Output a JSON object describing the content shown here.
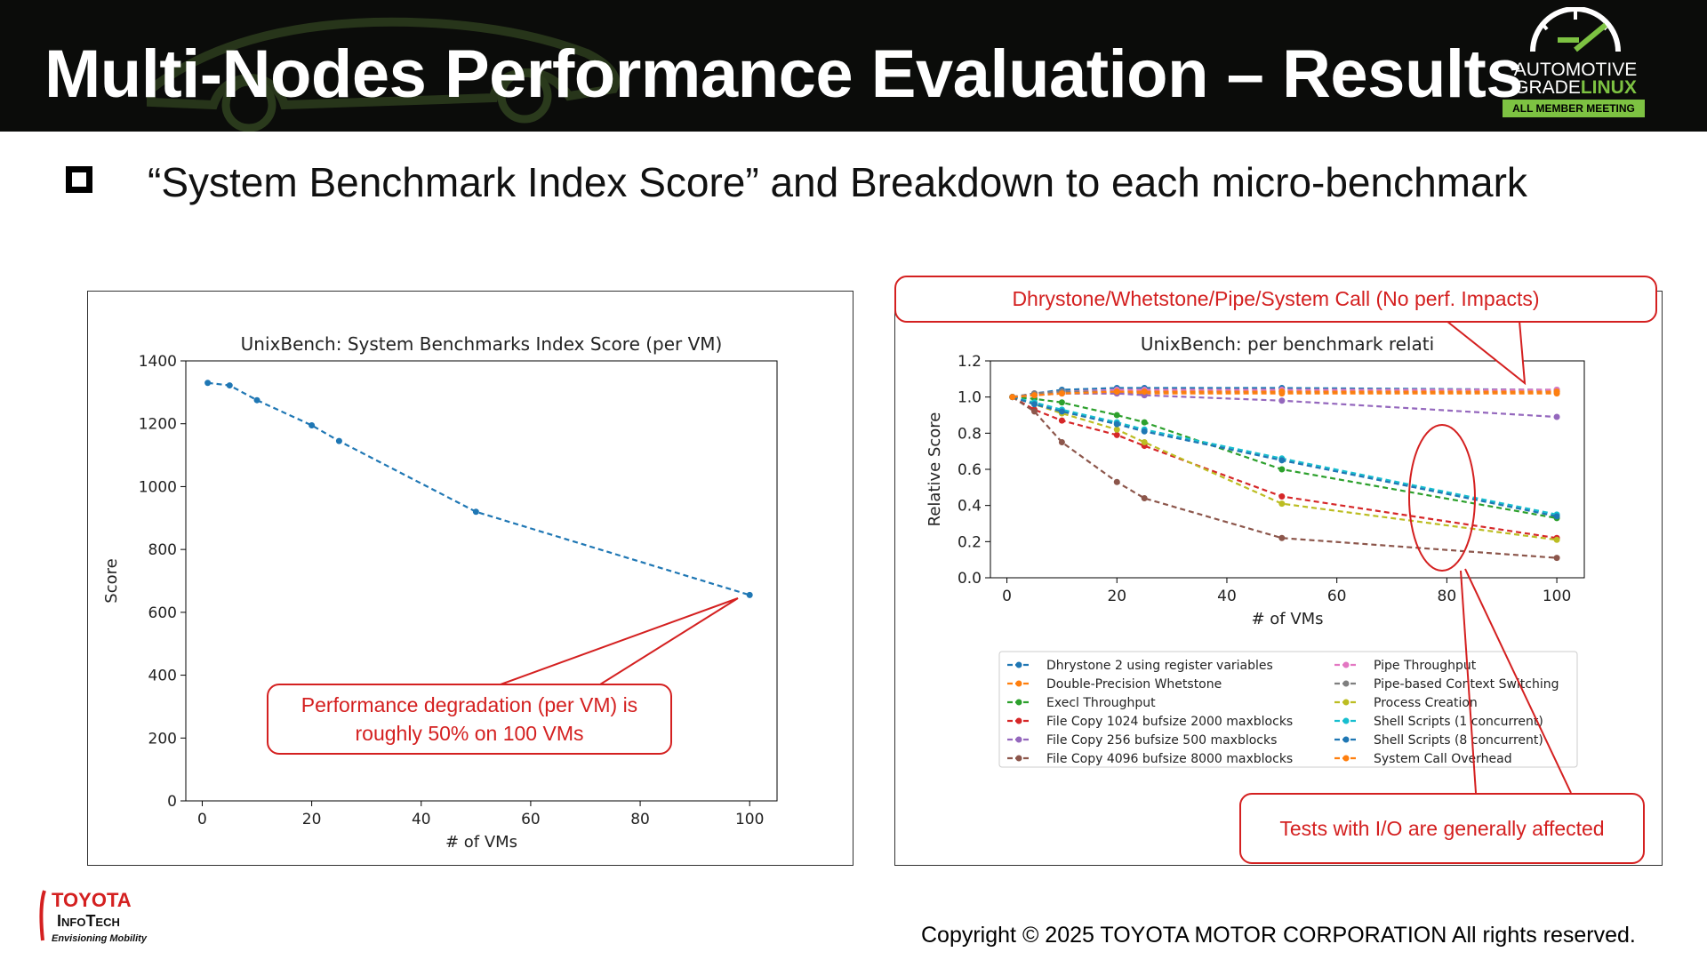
{
  "slide": {
    "title": "Multi-Nodes Performance Evaluation – Results",
    "bullet": "“System Benchmark Index Score” and Breakdown to each micro-benchmark",
    "footer": "Copyright ©  2025 TOYOTA MOTOR CORPORATION All rights reserved."
  },
  "agl_logo": {
    "line1": "AUTOMOTIVE",
    "line2a": "GRADE",
    "line2b": "LINUX",
    "band": "ALL MEMBER MEETING",
    "accent": "#7dc242"
  },
  "tit_logo": {
    "line1": "TOYOTA",
    "line2": "InfoTech",
    "line3": "Envisioning Mobility",
    "accent": "#d42020"
  },
  "callouts": {
    "left": "Performance degradation (per VM) is roughly 50% on 100 VMs",
    "top": "Dhrystone/Whetstone/Pipe/System Call (No perf. Impacts)",
    "bottom": "Tests with I/O are generally affected",
    "color": "#d42020"
  },
  "chart_data": [
    {
      "type": "line",
      "title": "UnixBench: System Benchmarks Index Score (per VM)",
      "xlabel": "# of VMs",
      "ylabel": "Score",
      "xlim": [
        -3,
        105
      ],
      "ylim": [
        0,
        1400
      ],
      "xticks": [
        0,
        20,
        40,
        60,
        80,
        100
      ],
      "yticks": [
        0,
        200,
        400,
        600,
        800,
        1000,
        1200,
        1400
      ],
      "grid": false,
      "series": [
        {
          "color": "#1f77b4",
          "x": [
            1,
            5,
            10,
            20,
            25,
            50,
            100
          ],
          "values": [
            1330,
            1322,
            1275,
            1195,
            1145,
            920,
            655
          ]
        }
      ]
    },
    {
      "type": "line",
      "title": "UnixBench: per benchmark relati",
      "xlabel": "# of VMs",
      "ylabel": "Relative Score",
      "xlim": [
        -3,
        105
      ],
      "ylim": [
        0,
        1.2
      ],
      "xticks": [
        0,
        20,
        40,
        60,
        80,
        100
      ],
      "yticks": [
        "0.0",
        "0.2",
        "0.4",
        "0.6",
        "0.8",
        "1.0",
        "1.2"
      ],
      "grid": false,
      "legend_position": "below",
      "x": [
        1,
        5,
        10,
        20,
        25,
        50,
        100
      ],
      "series": [
        {
          "name": "Dhrystone 2 using register variables",
          "color": "#1f77b4",
          "values": [
            1.0,
            1.02,
            1.04,
            1.05,
            1.05,
            1.05,
            1.04
          ]
        },
        {
          "name": "Double-Precision Whetstone",
          "color": "#ff7f0e",
          "values": [
            1.0,
            1.01,
            1.02,
            1.02,
            1.02,
            1.02,
            1.02
          ]
        },
        {
          "name": "Execl Throughput",
          "color": "#2ca02c",
          "values": [
            1.0,
            0.99,
            0.97,
            0.9,
            0.86,
            0.6,
            0.33
          ]
        },
        {
          "name": "File Copy 1024 bufsize 2000 maxblocks",
          "color": "#d62728",
          "values": [
            1.0,
            0.93,
            0.87,
            0.79,
            0.73,
            0.45,
            0.22
          ]
        },
        {
          "name": "File Copy 256 bufsize 500 maxblocks",
          "color": "#9467bd",
          "values": [
            1.0,
            1.01,
            1.02,
            1.02,
            1.01,
            0.98,
            0.89
          ]
        },
        {
          "name": "File Copy 4096 bufsize 8000 maxblocks",
          "color": "#8c564b",
          "values": [
            1.0,
            0.92,
            0.75,
            0.53,
            0.44,
            0.22,
            0.11
          ]
        },
        {
          "name": "Pipe Throughput",
          "color": "#e377c2",
          "values": [
            1.0,
            1.02,
            1.03,
            1.04,
            1.04,
            1.04,
            1.04
          ]
        },
        {
          "name": "Pipe-based Context Switching",
          "color": "#7f7f7f",
          "values": [
            1.0,
            1.02,
            1.03,
            1.03,
            1.03,
            1.03,
            1.03
          ]
        },
        {
          "name": "Process Creation",
          "color": "#bcbd22",
          "values": [
            1.0,
            0.96,
            0.91,
            0.82,
            0.75,
            0.41,
            0.21
          ]
        },
        {
          "name": "Shell Scripts (1 concurrent)",
          "color": "#17becf",
          "values": [
            1.0,
            0.97,
            0.93,
            0.86,
            0.82,
            0.66,
            0.35
          ]
        },
        {
          "name": "Shell Scripts (8 concurrent)",
          "color": "#1f77b4",
          "values": [
            1.0,
            0.96,
            0.92,
            0.85,
            0.81,
            0.65,
            0.34
          ]
        },
        {
          "name": "System Call Overhead",
          "color": "#ff7f0e",
          "values": [
            1.0,
            1.01,
            1.02,
            1.03,
            1.03,
            1.03,
            1.03
          ]
        }
      ]
    }
  ]
}
